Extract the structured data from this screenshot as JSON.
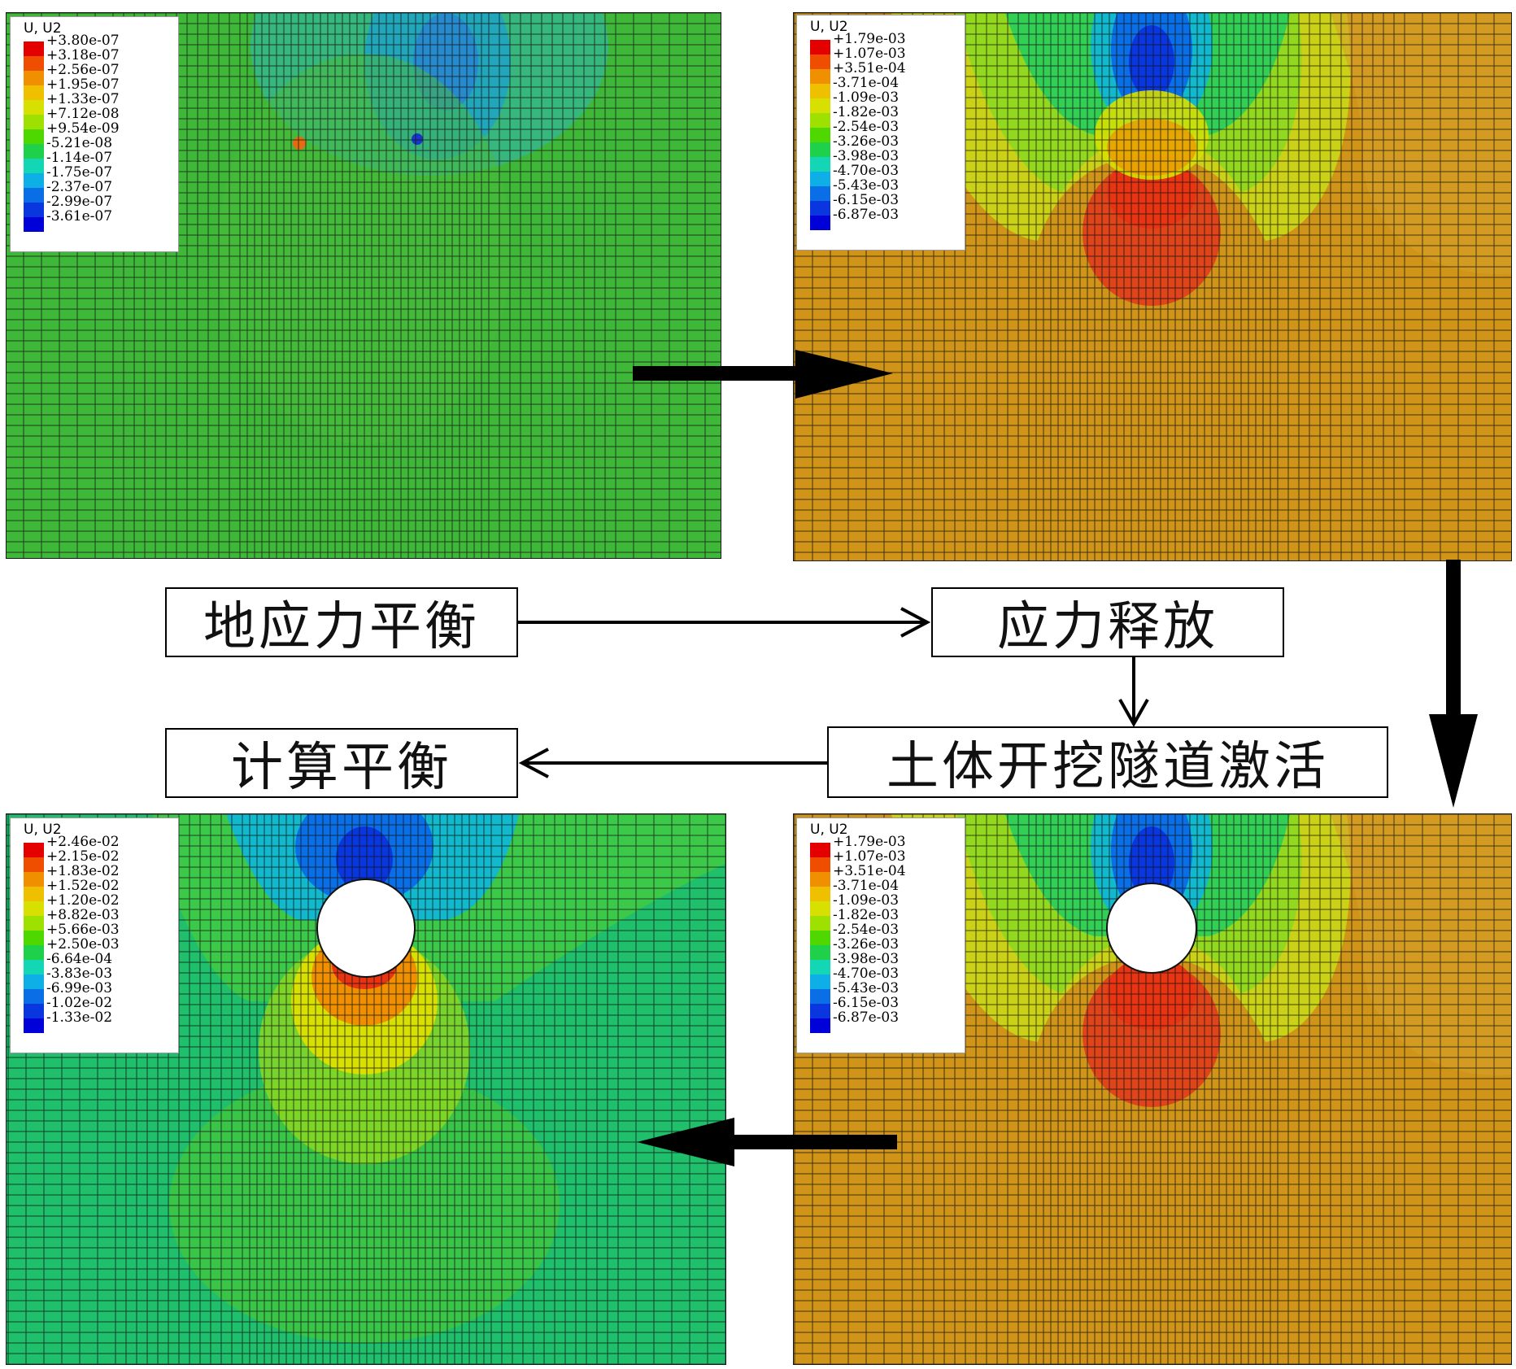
{
  "panels": {
    "top_left": {
      "legend_title": "U, U2",
      "legend_values": [
        "+3.80e-07",
        "+3.18e-07",
        "+2.56e-07",
        "+1.95e-07",
        "+1.33e-07",
        "+7.12e-08",
        "+9.54e-09",
        "-5.21e-08",
        "-1.14e-07",
        "-1.75e-07",
        "-2.37e-07",
        "-2.99e-07",
        "-3.61e-07"
      ],
      "background": "#3fb83a"
    },
    "top_right": {
      "legend_title": "U, U2",
      "legend_values": [
        "+1.79e-03",
        "+1.07e-03",
        "+3.51e-04",
        "-3.71e-04",
        "-1.09e-03",
        "-1.82e-03",
        "-2.54e-03",
        "-3.26e-03",
        "-3.98e-03",
        "-4.70e-03",
        "-5.43e-03",
        "-6.15e-03",
        "-6.87e-03"
      ],
      "background": "#cf9418"
    },
    "bottom_right": {
      "legend_title": "U, U2",
      "legend_values": [
        "+1.79e-03",
        "+1.07e-03",
        "+3.51e-04",
        "-3.71e-04",
        "-1.09e-03",
        "-1.82e-03",
        "-2.54e-03",
        "-3.26e-03",
        "-3.98e-03",
        "-4.70e-03",
        "-5.43e-03",
        "-6.15e-03",
        "-6.87e-03"
      ],
      "background": "#cf9418"
    },
    "bottom_left": {
      "legend_title": "U, U2",
      "legend_values": [
        "+2.46e-02",
        "+2.15e-02",
        "+1.83e-02",
        "+1.52e-02",
        "+1.20e-02",
        "+8.82e-03",
        "+5.66e-03",
        "+2.50e-03",
        "-6.64e-04",
        "-3.83e-03",
        "-6.99e-03",
        "-1.02e-02",
        "-1.33e-02"
      ],
      "background": "#1fbf6b"
    }
  },
  "legend_colors": [
    "#e50000",
    "#ef4d00",
    "#f08f00",
    "#eec000",
    "#d7e000",
    "#9ee000",
    "#4fd800",
    "#1fd04a",
    "#12d6b4",
    "#0eaee6",
    "#0a6ee6",
    "#0a36e0",
    "#0000d8"
  ],
  "steps": {
    "stress_balance": "地应力平衡",
    "stress_release": "应力释放",
    "excavation": "土体开挖隧道激活",
    "compute_balance": "计算平衡"
  }
}
